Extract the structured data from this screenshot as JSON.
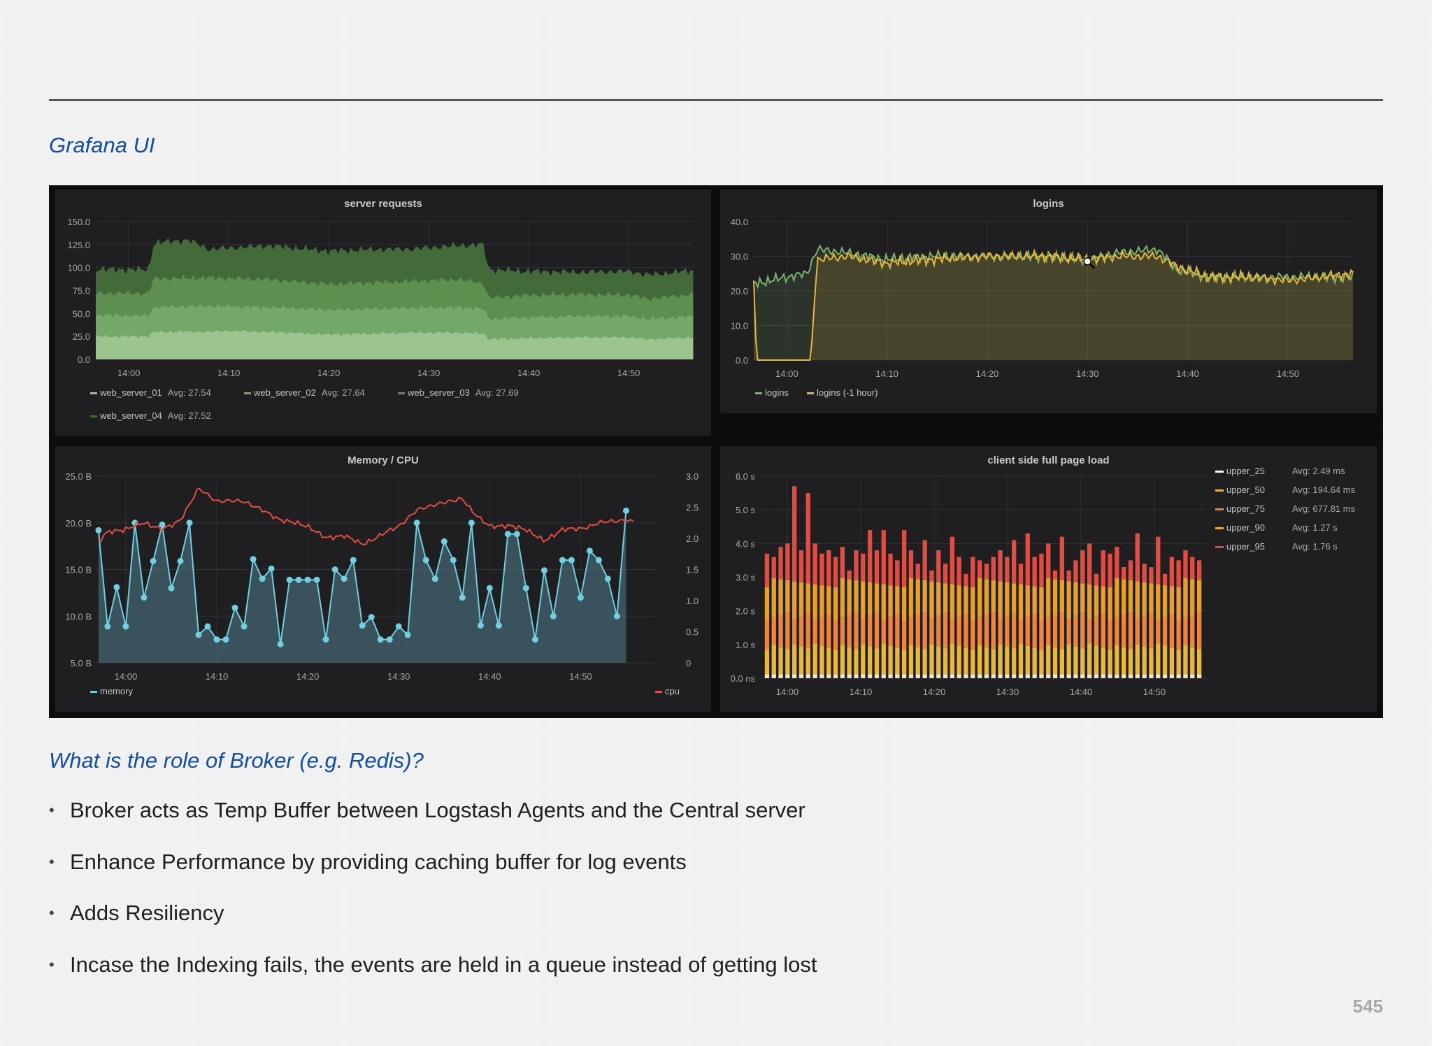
{
  "slide": {
    "heading_top": "Grafana UI",
    "heading_bottom": "What is the role of Broker (e.g. Redis)?",
    "bullets": [
      "Broker acts as Temp Buffer between Logstash Agents and the Central server",
      "Enhance Performance by providing caching buffer for log events",
      "Adds Resiliency",
      "Incase the Indexing fails, the events are held in a queue instead of getting lost"
    ],
    "page_number": "545",
    "colors": {
      "heading": "#0f4ea3",
      "text": "#1f1f1f",
      "page_number": "#a8a8a8"
    }
  },
  "dashboard": {
    "background": "#0d0d0e",
    "panel_background": "#1f1f21",
    "zoom_cursor_icon": "zoom-in-icon"
  },
  "chart_data": [
    {
      "id": "server_requests",
      "type": "area",
      "stacked": true,
      "title": "server requests",
      "x_ticks": [
        "14:00",
        "14:10",
        "14:20",
        "14:30",
        "14:40",
        "14:50"
      ],
      "y_ticks": [
        "0.0",
        "25.0",
        "50.0",
        "75.0",
        "100.0",
        "125.0",
        "150.0"
      ],
      "ylim": [
        0,
        150
      ],
      "x_range": [
        -3.3,
        56.5
      ],
      "grid": true,
      "legend_position": "bottom",
      "series": [
        {
          "name": "web_server_01",
          "avg_label": "Avg: 27.54",
          "color": "#9bc48f",
          "points": [
            [
              -3.3,
              25
            ],
            [
              2,
              25
            ],
            [
              2.5,
              30
            ],
            [
              8,
              30
            ],
            [
              10,
              31
            ],
            [
              14,
              30
            ],
            [
              20,
              27
            ],
            [
              28,
              29
            ],
            [
              33,
              29
            ],
            [
              35.5,
              28
            ],
            [
              36,
              22
            ],
            [
              40,
              23
            ],
            [
              45,
              24
            ],
            [
              50,
              24
            ],
            [
              52,
              22
            ],
            [
              56.5,
              24
            ]
          ]
        },
        {
          "name": "web_server_02",
          "avg_label": "Avg: 27.64",
          "color": "#74a868",
          "points": [
            [
              -3.3,
              48
            ],
            [
              2,
              48
            ],
            [
              2.5,
              57
            ],
            [
              8,
              58
            ],
            [
              14,
              57
            ],
            [
              20,
              54
            ],
            [
              28,
              56
            ],
            [
              33,
              57
            ],
            [
              35.5,
              55
            ],
            [
              36,
              44
            ],
            [
              40,
              46
            ],
            [
              45,
              47
            ],
            [
              50,
              47
            ],
            [
              52,
              44
            ],
            [
              56.5,
              47
            ]
          ]
        },
        {
          "name": "web_server_03",
          "avg_label": "Avg: 27.69",
          "color": "#5c8f50",
          "points": [
            [
              -3.3,
              72
            ],
            [
              2,
              72
            ],
            [
              2.5,
              88
            ],
            [
              8,
              89
            ],
            [
              14,
              87
            ],
            [
              20,
              82
            ],
            [
              28,
              85
            ],
            [
              33,
              87
            ],
            [
              35.5,
              83
            ],
            [
              36,
              67
            ],
            [
              40,
              70
            ],
            [
              45,
              71
            ],
            [
              50,
              70
            ],
            [
              52,
              66
            ],
            [
              56.5,
              71
            ]
          ]
        },
        {
          "name": "web_server_04",
          "avg_label": "Avg: 27.52",
          "color": "#436b3a",
          "points": [
            [
              -3.3,
              98
            ],
            [
              2,
              98
            ],
            [
              2.5,
              127
            ],
            [
              6,
              130
            ],
            [
              8,
              120
            ],
            [
              14,
              124
            ],
            [
              20,
              118
            ],
            [
              25,
              120
            ],
            [
              28,
              120
            ],
            [
              33,
              124
            ],
            [
              35.5,
              125
            ],
            [
              36,
              98
            ],
            [
              40,
              96
            ],
            [
              45,
              95
            ],
            [
              50,
              96
            ],
            [
              52,
              92
            ],
            [
              56.5,
              97
            ]
          ]
        }
      ]
    },
    {
      "id": "logins",
      "type": "line",
      "title": "logins",
      "x_ticks": [
        "14:00",
        "14:10",
        "14:20",
        "14:30",
        "14:40",
        "14:50"
      ],
      "y_ticks": [
        "0.0",
        "10.0",
        "20.0",
        "30.0",
        "40.0"
      ],
      "ylim": [
        0,
        40
      ],
      "x_range": [
        -3.3,
        56.5
      ],
      "grid": true,
      "legend_position": "bottom",
      "series": [
        {
          "name": "logins",
          "color": "#7eb26d",
          "points": [
            [
              -3.3,
              22
            ],
            [
              0,
              24
            ],
            [
              2,
              25
            ],
            [
              3,
              32
            ],
            [
              6,
              31
            ],
            [
              10,
              29
            ],
            [
              14,
              30
            ],
            [
              20,
              30
            ],
            [
              26,
              30
            ],
            [
              30,
              29
            ],
            [
              33,
              31
            ],
            [
              37,
              32
            ],
            [
              39,
              26
            ],
            [
              42,
              24
            ],
            [
              46,
              24
            ],
            [
              50,
              24
            ],
            [
              56.5,
              24
            ]
          ]
        },
        {
          "name": "logins (-1 hour)",
          "color": "#eab839",
          "points": [
            [
              -3.3,
              22
            ],
            [
              -3,
              0
            ],
            [
              2.4,
              0
            ],
            [
              3,
              29
            ],
            [
              6,
              30
            ],
            [
              10,
              28
            ],
            [
              14,
              29
            ],
            [
              20,
              30
            ],
            [
              26,
              30
            ],
            [
              30,
              29
            ],
            [
              33,
              30
            ],
            [
              37,
              30
            ],
            [
              39,
              27
            ],
            [
              42,
              24
            ],
            [
              46,
              24
            ],
            [
              50,
              23
            ],
            [
              56.5,
              25
            ]
          ]
        }
      ]
    },
    {
      "id": "memory_cpu",
      "type": "line",
      "title": "Memory / CPU",
      "x_ticks": [
        "14:00",
        "14:10",
        "14:20",
        "14:30",
        "14:40",
        "14:50"
      ],
      "y_ticks_left": [
        "5.0 B",
        "10.0 B",
        "15.0 B",
        "20.0 B",
        "25.0 B"
      ],
      "y_ticks_right": [
        "0",
        "0.5",
        "1.0",
        "1.5",
        "2.0",
        "2.5",
        "3.0"
      ],
      "ylim_left": [
        5,
        25
      ],
      "ylim_right": [
        0,
        3
      ],
      "grid": true,
      "legend_position": "bottom",
      "series": [
        {
          "name": "memory",
          "axis": "left",
          "color": "#6ed0e0",
          "fill": true,
          "x": [
            -3,
            -2,
            -1,
            0,
            1,
            2,
            3,
            4,
            5,
            6,
            7,
            8,
            9,
            10,
            11,
            12,
            13,
            14,
            15,
            16,
            17,
            18,
            19,
            20,
            21,
            22,
            23,
            24,
            25,
            26,
            27,
            28,
            29,
            30,
            31,
            32,
            33,
            34,
            35,
            36,
            37,
            38,
            39,
            40,
            41,
            42,
            43,
            44,
            45,
            46,
            47,
            48,
            49,
            50,
            51,
            52,
            53,
            54,
            55
          ],
          "values": [
            19.2,
            8.9,
            13.1,
            8.9,
            20,
            12,
            15.9,
            19.8,
            13,
            15.9,
            20,
            8,
            8.9,
            7.5,
            7.5,
            10.9,
            8.9,
            16.1,
            14,
            15.1,
            7,
            13.9,
            13.9,
            13.9,
            13.9,
            7.5,
            15,
            14,
            16,
            9,
            9.9,
            7.5,
            7.5,
            8.9,
            8,
            20,
            16,
            14,
            18,
            16,
            12,
            20,
            9,
            13,
            9,
            18.8,
            18.8,
            13,
            7.5,
            14.9,
            10,
            16,
            16,
            12,
            17,
            16,
            14,
            10,
            21.3
          ]
        },
        {
          "name": "cpu",
          "axis": "right",
          "color": "#e24d42",
          "fill": false,
          "points": [
            [
              -3,
              1.95
            ],
            [
              -2,
              2.1
            ],
            [
              0,
              2.15
            ],
            [
              2,
              2.25
            ],
            [
              4,
              2.15
            ],
            [
              5,
              2.2
            ],
            [
              6,
              2.3
            ],
            [
              7,
              2.55
            ],
            [
              8,
              2.8
            ],
            [
              10,
              2.6
            ],
            [
              13,
              2.6
            ],
            [
              15,
              2.45
            ],
            [
              17,
              2.3
            ],
            [
              20,
              2.2
            ],
            [
              22,
              2.0
            ],
            [
              24,
              2.05
            ],
            [
              26,
              1.9
            ],
            [
              28,
              2.05
            ],
            [
              30,
              2.2
            ],
            [
              32,
              2.45
            ],
            [
              34,
              2.55
            ],
            [
              36,
              2.6
            ],
            [
              37,
              2.65
            ],
            [
              38,
              2.45
            ],
            [
              39,
              2.3
            ],
            [
              40,
              2.2
            ],
            [
              42,
              2.2
            ],
            [
              44,
              2.15
            ],
            [
              45,
              2.05
            ],
            [
              46,
              1.95
            ],
            [
              48,
              2.15
            ],
            [
              50,
              2.15
            ],
            [
              52,
              2.25
            ],
            [
              55,
              2.3
            ],
            [
              56,
              2.25
            ]
          ]
        }
      ]
    },
    {
      "id": "client_side_full_page_load",
      "type": "bar",
      "stacked": true,
      "title": "client side full page load",
      "x_ticks": [
        "14:00",
        "14:10",
        "14:20",
        "14:30",
        "14:40",
        "14:50"
      ],
      "y_ticks": [
        "0.0 ns",
        "1.0 s",
        "2.0 s",
        "3.0 s",
        "4.0 s",
        "5.0 s",
        "6.0 s"
      ],
      "ylim": [
        0,
        6
      ],
      "grid": true,
      "legend_position": "right",
      "series": [
        {
          "name": "upper_25",
          "avg_label": "Avg: 2.49 ms",
          "color": "#ffffff"
        },
        {
          "name": "upper_50",
          "avg_label": "Avg: 194.64 ms",
          "color": "#eab839"
        },
        {
          "name": "upper_75",
          "avg_label": "Avg: 677.81 ms",
          "color": "#ef843c"
        },
        {
          "name": "upper_90",
          "avg_label": "Avg: 1.27 s",
          "color": "#e5ac0e"
        },
        {
          "name": "upper_95",
          "avg_label": "Avg: 1.76 s",
          "color": "#e24d42"
        }
      ],
      "bar_totals_s": [
        3.7,
        3.6,
        3.9,
        4.0,
        5.7,
        3.8,
        5.5,
        4.0,
        3.7,
        3.8,
        3.6,
        3.9,
        3.2,
        3.8,
        3.7,
        4.4,
        3.8,
        4.4,
        3.7,
        3.5,
        4.4,
        3.8,
        3.4,
        4.1,
        3.2,
        3.8,
        3.4,
        4.2,
        3.6,
        3.1,
        3.6,
        3.5,
        3.4,
        3.6,
        3.8,
        3.6,
        4.1,
        3.4,
        4.3,
        3.6,
        3.7,
        4.0,
        3.2,
        4.2,
        3.2,
        3.5,
        3.8,
        4.0,
        3.1,
        3.8,
        3.7,
        3.9,
        3.3,
        3.5,
        4.3,
        3.4,
        3.3,
        4.2,
        3.1,
        3.6,
        3.5,
        3.8,
        3.6,
        3.5
      ]
    }
  ]
}
